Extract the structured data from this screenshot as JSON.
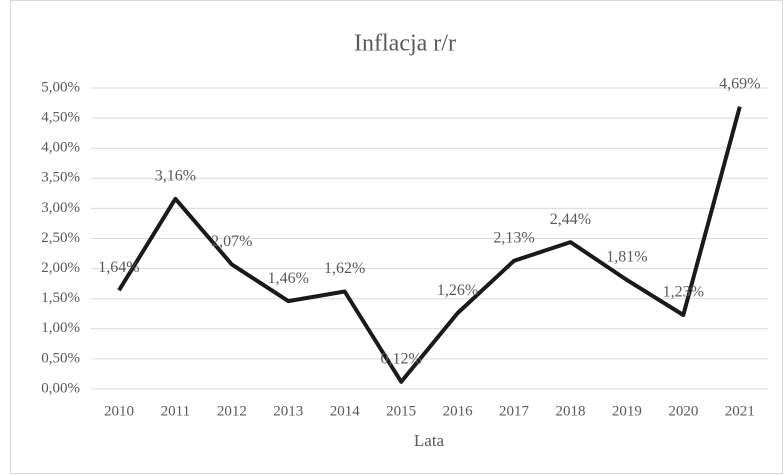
{
  "chart_data": {
    "type": "line",
    "title": "Inflacja r/r",
    "x_label": "Lata",
    "categories": [
      "2010",
      "2011",
      "2012",
      "2013",
      "2014",
      "2015",
      "2016",
      "2017",
      "2018",
      "2019",
      "2020",
      "2021"
    ],
    "series": [
      {
        "name": "Inflacja r/r",
        "color": "#1a1a1a",
        "values": [
          1.64,
          3.16,
          2.07,
          1.46,
          1.62,
          0.12,
          1.26,
          2.13,
          2.44,
          1.81,
          1.23,
          4.69
        ],
        "value_labels": [
          "1,64%",
          "3,16%",
          "2,07%",
          "1,46%",
          "1,62%",
          "0,12%",
          "1,26%",
          "2,13%",
          "2,44%",
          "1,81%",
          "1,23%",
          "4,69%"
        ]
      }
    ],
    "ylim": [
      0,
      5
    ],
    "yticks": [
      {
        "value": 0,
        "label": "0,00%"
      },
      {
        "value": 0.5,
        "label": "0,50%"
      },
      {
        "value": 1,
        "label": "1,00%"
      },
      {
        "value": 1.5,
        "label": "1,50%"
      },
      {
        "value": 2,
        "label": "2,00%"
      },
      {
        "value": 2.5,
        "label": "2,50%"
      },
      {
        "value": 3,
        "label": "3,00%"
      },
      {
        "value": 3.5,
        "label": "3,50%"
      },
      {
        "value": 4,
        "label": "4,00%"
      },
      {
        "value": 4.5,
        "label": "4,50%"
      },
      {
        "value": 5,
        "label": "5,00%"
      }
    ],
    "grid": true
  }
}
